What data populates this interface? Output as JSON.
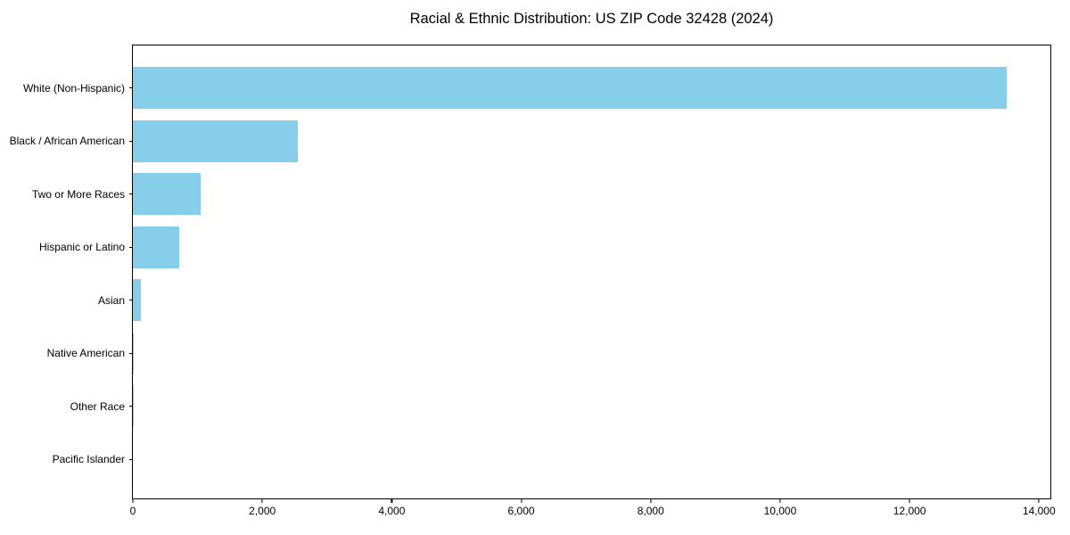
{
  "chart_data": {
    "type": "bar",
    "orientation": "horizontal",
    "title": "Racial & Ethnic Distribution: US ZIP Code 32428 (2024)",
    "categories": [
      "White (Non-Hispanic)",
      "Black / African American",
      "Two or More Races",
      "Hispanic or Latino",
      "Asian",
      "Native American",
      "Other Race",
      "Pacific Islander"
    ],
    "values": [
      13500,
      2550,
      1050,
      720,
      125,
      15,
      10,
      0
    ],
    "xlabel": "",
    "ylabel": "",
    "xlim": [
      0,
      14175
    ],
    "x_ticks": [
      0,
      2000,
      4000,
      6000,
      8000,
      10000,
      12000,
      14000
    ],
    "x_tick_labels": [
      "0",
      "2,000",
      "4,000",
      "6,000",
      "8,000",
      "10,000",
      "12,000",
      "14,000"
    ],
    "bar_color": "#87CEEB",
    "axis_color": "#000000",
    "text_color": "#000000",
    "background_color": "#ffffff",
    "grid": false,
    "legend_position": "none"
  }
}
